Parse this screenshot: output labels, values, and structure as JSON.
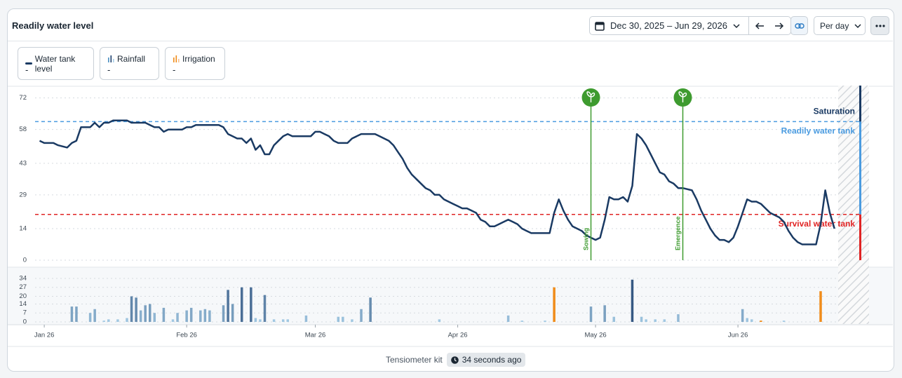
{
  "header": {
    "title": "Readily water level",
    "date_range": "Dec 30, 2025 – Jun 29, 2026",
    "interval": "Per day"
  },
  "chart_data": [
    {
      "type": "line",
      "series": [
        {
          "name": "Water tank level",
          "current_value": "-",
          "color": "#1a3a63",
          "x": [
            1,
            2,
            3,
            4,
            5,
            7,
            8,
            9,
            10,
            11,
            12,
            13,
            14,
            15,
            16,
            17,
            18,
            19,
            20,
            21,
            22,
            24,
            25,
            26,
            27,
            28,
            29,
            30,
            31,
            32,
            33,
            34,
            35,
            36,
            37,
            38,
            40,
            41,
            42,
            43,
            44,
            45,
            46,
            47,
            48,
            49,
            50,
            51,
            52,
            53,
            54,
            55,
            56,
            57,
            58,
            60,
            61,
            62,
            63,
            64,
            65,
            66,
            67,
            68,
            69,
            70,
            71,
            72,
            73,
            74,
            75,
            77,
            78,
            79,
            80,
            81,
            82,
            83,
            84,
            85,
            86,
            87,
            88,
            89,
            91,
            92,
            93,
            94,
            95,
            96,
            97,
            98,
            99,
            100,
            101,
            102,
            103,
            104,
            105,
            106,
            107,
            108,
            109,
            111,
            112,
            113,
            114,
            115,
            116,
            117,
            118,
            119,
            120,
            121,
            122,
            123,
            124,
            125,
            126,
            127,
            128,
            129,
            130,
            131,
            132,
            133,
            134,
            135,
            136,
            137,
            138,
            139,
            140,
            141,
            143,
            144,
            145,
            146,
            147,
            148,
            149,
            150,
            151,
            152,
            153,
            154,
            155,
            156,
            157,
            158,
            159,
            160,
            162,
            163,
            164,
            165,
            166,
            167,
            168,
            169,
            170,
            171,
            172,
            173,
            174
          ],
          "values": [
            53,
            52,
            52,
            52,
            51,
            50,
            52,
            53,
            59,
            59,
            59,
            61,
            59,
            61,
            61,
            62,
            62,
            62,
            62,
            61,
            61,
            61,
            60,
            59,
            59,
            57,
            58,
            58,
            58,
            58,
            59,
            59,
            60,
            60,
            60,
            60,
            60,
            59,
            56,
            55,
            54,
            54,
            52,
            54,
            49,
            51,
            47,
            47,
            51,
            53,
            55,
            56,
            55,
            55,
            55,
            55,
            57,
            57,
            56,
            55,
            53,
            52,
            52,
            52,
            54,
            55,
            56,
            56,
            56,
            56,
            55,
            53,
            51,
            48,
            45,
            41,
            38,
            36,
            34,
            32,
            31,
            29,
            29,
            27,
            25,
            24,
            23,
            23,
            22,
            21,
            18,
            17,
            15,
            15,
            16,
            17,
            18,
            17,
            16,
            14,
            13,
            12,
            12,
            12,
            12,
            21,
            27,
            22,
            18,
            15,
            14,
            13,
            11,
            10,
            9,
            10,
            18,
            28,
            27,
            27,
            28,
            26,
            33,
            56,
            54,
            51,
            47,
            43,
            39,
            38,
            35,
            34,
            32,
            32,
            31,
            27,
            22,
            18,
            14,
            11,
            9,
            9,
            8,
            10,
            15,
            21,
            27,
            26,
            26,
            25,
            23,
            21,
            19,
            17,
            13,
            10,
            8,
            7,
            7,
            7,
            7,
            16,
            31,
            21,
            14
          ]
        }
      ],
      "xlim": [
        0,
        181
      ],
      "ylim": [
        0,
        77.5
      ],
      "yticks": [
        0,
        14,
        29,
        43,
        58,
        72
      ],
      "grid": true,
      "zones": [
        {
          "name": "Saturation",
          "from": 61.5,
          "color": "#1a3a63"
        },
        {
          "name": "Readily water tank",
          "from": 20.3,
          "to": 61.5,
          "color": "#4a9be0"
        },
        {
          "name": "Survival water tank",
          "from": 0,
          "to": 20.3,
          "color": "#e02424"
        }
      ],
      "events": [
        {
          "label": "Sowing",
          "x": 121,
          "color": "#3e9b2f"
        },
        {
          "label": "Emergence",
          "x": 141,
          "color": "#3e9b2f"
        }
      ]
    },
    {
      "type": "bar",
      "series": [
        {
          "name": "Rainfall",
          "current_value": "-",
          "color": "#1c3f6e",
          "color_light": "#a8cfe8",
          "x": [
            8,
            9,
            12,
            13,
            15,
            16,
            18,
            20,
            21,
            22,
            23,
            24,
            25,
            26,
            28,
            30,
            31,
            33,
            34,
            36,
            37,
            38,
            41,
            42,
            43,
            45,
            47,
            48,
            49,
            50,
            52,
            54,
            55,
            59,
            66,
            67,
            69,
            71,
            73,
            88,
            103,
            106,
            111,
            121,
            124,
            126,
            130,
            132,
            133,
            135,
            137,
            140,
            154,
            155,
            156,
            163
          ],
          "values": [
            12,
            12,
            7,
            10,
            1,
            2,
            2,
            3,
            20,
            19,
            9,
            13,
            14,
            7,
            11,
            2,
            7,
            9,
            11,
            9,
            10,
            9,
            13,
            25,
            14,
            27,
            27,
            3,
            2,
            21,
            2,
            2,
            2,
            5,
            4,
            4,
            2,
            10,
            19,
            2,
            5,
            1,
            1,
            12,
            13,
            4,
            33,
            4,
            2,
            2,
            2,
            6,
            10,
            3,
            2,
            1
          ]
        },
        {
          "name": "Irrigation",
          "current_value": "-",
          "color": "#f08c1a",
          "x": [
            113,
            158,
            171
          ],
          "values": [
            27,
            1,
            24
          ]
        }
      ],
      "xlim": [
        0,
        181
      ],
      "ylim": [
        0,
        40
      ],
      "yticks": [
        0,
        7,
        14,
        20,
        27,
        34
      ],
      "grid": true,
      "xticks": [
        {
          "value": 2,
          "label": "Jan 26"
        },
        {
          "value": 33,
          "label": "Feb 26"
        },
        {
          "value": 61,
          "label": "Mar 26"
        },
        {
          "value": 92,
          "label": "Apr 26"
        },
        {
          "value": 122,
          "label": "May 26"
        },
        {
          "value": 153,
          "label": "Jun 26"
        }
      ]
    }
  ],
  "footer": {
    "source": "Tensiometer kit",
    "updated": "34 seconds ago"
  }
}
